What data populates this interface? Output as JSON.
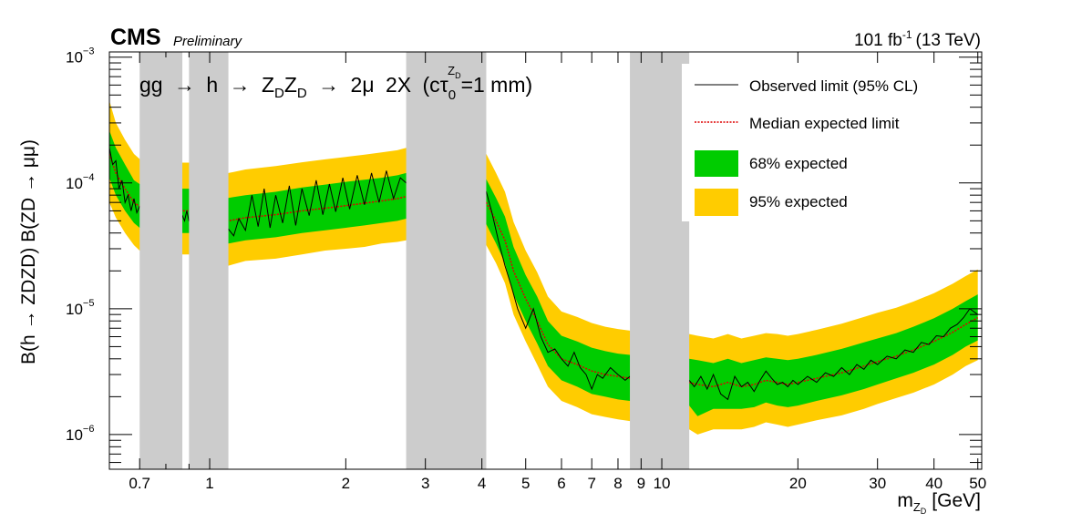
{
  "header": {
    "experiment": "CMS",
    "status": "Preliminary",
    "lumi": "101 fb",
    "lumi_exp": "-1",
    "energy": "(13 TeV)"
  },
  "process_label": {
    "parts": [
      "gg",
      "→",
      "h",
      "→",
      "Z",
      "D",
      "Z",
      "D",
      "→",
      "2μ",
      "2X",
      "(cτ",
      "0",
      "Z",
      "D",
      "=1 mm)"
    ]
  },
  "legend": {
    "observed": "Observed limit (95% CL)",
    "expected": "Median expected limit",
    "band68": "68% expected",
    "band95": "95% expected"
  },
  "axes": {
    "ylabel": "B(h → ZDZD) B(ZD → μμ)",
    "xlabel": "m",
    "xlabel_sub": "Z",
    "xlabel_subsub": "D",
    "xlabel_unit": "[GeV]"
  },
  "colors": {
    "band95": "#ffcc00",
    "band68": "#00cc00",
    "expected": "#dd0000",
    "observed": "#000000",
    "veto": "#cccccc"
  },
  "chart_data": {
    "type": "area",
    "x_scale": "log",
    "y_scale": "log",
    "xlim": [
      0.6,
      51
    ],
    "ylim": [
      5.3e-07,
      0.0011
    ],
    "x_ticks": [
      {
        "v": 0.7,
        "label": "0.7"
      },
      {
        "v": 1,
        "label": "1"
      },
      {
        "v": 2,
        "label": "2"
      },
      {
        "v": 3,
        "label": "3"
      },
      {
        "v": 4,
        "label": "4"
      },
      {
        "v": 5,
        "label": "5"
      },
      {
        "v": 6,
        "label": "6"
      },
      {
        "v": 7,
        "label": "7"
      },
      {
        "v": 8,
        "label": "8"
      },
      {
        "v": 9,
        "label": "9"
      },
      {
        "v": 10,
        "label": "10"
      },
      {
        "v": 20,
        "label": "20"
      },
      {
        "v": 30,
        "label": "30"
      },
      {
        "v": 40,
        "label": "40"
      },
      {
        "v": 50,
        "label": "50"
      }
    ],
    "y_ticks": [
      {
        "v": 1e-06,
        "base": "10",
        "exp": "−6"
      },
      {
        "v": 1e-05,
        "base": "10",
        "exp": "−5"
      },
      {
        "v": 0.0001,
        "base": "10",
        "exp": "−4"
      },
      {
        "v": 0.001,
        "base": "10",
        "exp": "−3"
      }
    ],
    "excluded_regions": [
      [
        0.7,
        0.87
      ],
      [
        0.9,
        1.1
      ],
      [
        2.72,
        4.09
      ],
      [
        8.5,
        11.5
      ]
    ],
    "expected": {
      "x": [
        0.6,
        0.62,
        0.65,
        0.68,
        0.7,
        0.87,
        0.9,
        1.1,
        1.2,
        1.4,
        1.6,
        1.8,
        2.0,
        2.2,
        2.4,
        2.6,
        2.72,
        4.09,
        4.3,
        4.5,
        4.7,
        5.0,
        5.3,
        5.6,
        6.0,
        6.5,
        7.0,
        7.5,
        8.0,
        8.5,
        11.5,
        12,
        13,
        14,
        15,
        16,
        17,
        18,
        19,
        20,
        22,
        25,
        28,
        30,
        33,
        36,
        40,
        44,
        47,
        50
      ],
      "median": [
        0.00017,
        0.00012,
        9e-05,
        7e-05,
        6.5e-05,
        6e-05,
        6e-05,
        5e-05,
        5.3e-05,
        5.6e-05,
        6e-05,
        6.3e-05,
        6.6e-05,
        6.9e-05,
        7.2e-05,
        7.5e-05,
        7.8e-05,
        7e-05,
        5e-05,
        3.5e-05,
        2e-05,
        1.2e-05,
        8e-06,
        5.2e-06,
        4e-06,
        3.6e-06,
        3.2e-06,
        3e-06,
        2.9e-06,
        2.8e-06,
        2.6e-06,
        2.5e-06,
        2.4e-06,
        2.6e-06,
        2.4e-06,
        2.5e-06,
        2.7e-06,
        2.6e-06,
        2.5e-06,
        2.6e-06,
        2.8e-06,
        3.1e-06,
        3.5e-06,
        3.8e-06,
        4.2e-06,
        4.7e-06,
        5.5e-06,
        6.5e-06,
        7.5e-06,
        8.5e-06
      ],
      "band68_lo": [
        0.00011,
        8e-05,
        6e-05,
        4.8e-05,
        4.4e-05,
        4e-05,
        4e-05,
        3.3e-05,
        3.5e-05,
        3.7e-05,
        4e-05,
        4.2e-05,
        4.4e-05,
        4.6e-05,
        4.8e-05,
        5e-05,
        5.2e-05,
        4.7e-05,
        3.3e-05,
        2.3e-05,
        1.3e-05,
        8e-06,
        5.3e-06,
        3.5e-06,
        2.7e-06,
        2.4e-06,
        2.1e-06,
        2e-06,
        1.9e-06,
        1.85e-06,
        1.7e-06,
        1.4e-06,
        1.6e-06,
        1.6e-06,
        1.6e-06,
        1.65e-06,
        1.8e-06,
        1.7e-06,
        1.65e-06,
        1.7e-06,
        1.85e-06,
        2.05e-06,
        2.3e-06,
        2.5e-06,
        2.8e-06,
        3.1e-06,
        3.6e-06,
        4.3e-06,
        5e-06,
        5.6e-06
      ],
      "band68_hi": [
        0.00026,
        0.00019,
        0.00014,
        0.000105,
        9.8e-05,
        9e-05,
        9e-05,
        7.6e-05,
        8e-05,
        8.5e-05,
        9.2e-05,
        9.7e-05,
        0.000102,
        0.000106,
        0.00011,
        0.000115,
        0.00012,
        0.000107,
        7.6e-05,
        5.4e-05,
        3.1e-05,
        1.85e-05,
        1.25e-05,
        8e-06,
        6.1e-06,
        5.5e-06,
        4.9e-06,
        4.6e-06,
        4.4e-06,
        4.3e-06,
        4e-06,
        3.9e-06,
        3.7e-06,
        4e-06,
        3.7e-06,
        3.9e-06,
        4.1e-06,
        4e-06,
        3.9e-06,
        4e-06,
        4.3e-06,
        4.8e-06,
        5.4e-06,
        5.8e-06,
        6.4e-06,
        7.2e-06,
        8.4e-06,
        1e-05,
        1.15e-05,
        1.3e-05
      ],
      "band95_lo": [
        7e-05,
        5.3e-05,
        4e-05,
        3.2e-05,
        2.9e-05,
        2.7e-05,
        2.7e-05,
        2.2e-05,
        2.4e-05,
        2.5e-05,
        2.7e-05,
        2.9e-05,
        3e-05,
        3.1e-05,
        3.3e-05,
        3.4e-05,
        3.5e-05,
        3.2e-05,
        2.3e-05,
        1.6e-05,
        9e-06,
        5.5e-06,
        3.6e-06,
        2.4e-06,
        1.85e-06,
        1.65e-06,
        1.45e-06,
        1.38e-06,
        1.32e-06,
        1.28e-06,
        1.1e-06,
        1e-06,
        1.1e-06,
        1.1e-06,
        1.1e-06,
        1.15e-06,
        1.25e-06,
        1.2e-06,
        1.15e-06,
        1.2e-06,
        1.3e-06,
        1.42e-06,
        1.6e-06,
        1.75e-06,
        1.95e-06,
        2.15e-06,
        2.5e-06,
        3e-06,
        3.5e-06,
        3.9e-06
      ],
      "band95_hi": [
        0.00045,
        0.0003,
        0.00022,
        0.00017,
        0.000155,
        0.000145,
        0.000145,
        0.00012,
        0.000128,
        0.000136,
        0.000146,
        0.000154,
        0.000161,
        0.000168,
        0.000175,
        0.000182,
        0.00019,
        0.00017,
        0.00012,
        8.5e-05,
        4.9e-05,
        2.9e-05,
        1.95e-05,
        1.25e-05,
        9.5e-06,
        8.6e-06,
        7.7e-06,
        7.2e-06,
        6.9e-06,
        6.7e-06,
        6.3e-06,
        6.1e-06,
        5.8e-06,
        6.3e-06,
        5.8e-06,
        6.1e-06,
        6.4e-06,
        6.3e-06,
        6.1e-06,
        6.3e-06,
        6.8e-06,
        7.6e-06,
        8.6e-06,
        9.3e-06,
        1.02e-05,
        1.14e-05,
        1.33e-05,
        1.58e-05,
        1.82e-05,
        2.05e-05
      ]
    },
    "observed": {
      "x": [
        0.6,
        0.61,
        0.62,
        0.63,
        0.64,
        0.65,
        0.66,
        0.67,
        0.68,
        0.69,
        0.7,
        0.87,
        0.88,
        0.89,
        0.9,
        1.1,
        1.13,
        1.16,
        1.2,
        1.24,
        1.28,
        1.32,
        1.36,
        1.4,
        1.45,
        1.5,
        1.55,
        1.6,
        1.66,
        1.72,
        1.78,
        1.84,
        1.9,
        1.97,
        2.04,
        2.12,
        2.2,
        2.28,
        2.37,
        2.46,
        2.55,
        2.64,
        2.72,
        4.09,
        4.2,
        4.35,
        4.5,
        4.65,
        4.8,
        5.0,
        5.2,
        5.4,
        5.6,
        5.8,
        6.0,
        6.2,
        6.4,
        6.6,
        6.8,
        7.0,
        7.2,
        7.4,
        7.7,
        8.0,
        8.3,
        8.5,
        11.5,
        11.8,
        12.2,
        12.6,
        13.0,
        13.5,
        14.0,
        14.5,
        15.0,
        15.5,
        16.0,
        16.5,
        17.0,
        17.5,
        18.0,
        18.5,
        19.0,
        19.5,
        20.0,
        21.0,
        22.0,
        23.0,
        24.0,
        25.0,
        26.0,
        27.0,
        28.0,
        29.0,
        30.0,
        31.5,
        33.0,
        34.5,
        36.0,
        37.5,
        39.0,
        40.5,
        42.0,
        43.5,
        45.0,
        46.5,
        48.0,
        50.0
      ],
      "limit": [
        0.00019,
        0.00014,
        0.00015,
        9e-05,
        0.000105,
        7e-05,
        8e-05,
        6e-05,
        7.5e-05,
        5.8e-05,
        6.5e-05,
        5.5e-05,
        5e-05,
        6e-05,
        5e-05,
        4.3e-05,
        3.8e-05,
        5.2e-05,
        4.2e-05,
        8e-05,
        4.5e-05,
        9e-05,
        4.4e-05,
        8e-05,
        4.8e-05,
        9.5e-05,
        4.6e-05,
        9e-05,
        5.5e-05,
        0.000105,
        5.6e-05,
        9.8e-05,
        5.9e-05,
        0.00011,
        6.2e-05,
        0.000115,
        6.7e-05,
        0.00012,
        7e-05,
        0.000125,
        7.5e-05,
        0.00011,
        0.0001,
        8.5e-05,
        6e-05,
        3.5e-05,
        2.2e-05,
        1.5e-05,
        1e-05,
        7e-06,
        1e-05,
        6e-06,
        4.5e-06,
        4.8e-06,
        4e-06,
        3.5e-06,
        4.5e-06,
        3.4e-06,
        3e-06,
        2.3e-06,
        3e-06,
        2.8e-06,
        3.4e-06,
        3e-06,
        2.7e-06,
        2.9e-06,
        2.7e-06,
        2.4e-06,
        2.9e-06,
        2.3e-06,
        3e-06,
        2.1e-06,
        1.9e-06,
        2.9e-06,
        2.4e-06,
        2.6e-06,
        2.2e-06,
        2.7e-06,
        3.2e-06,
        2.8e-06,
        2.5e-06,
        2.6e-06,
        2.4e-06,
        2.7e-06,
        2.5e-06,
        2.9e-06,
        2.6e-06,
        3.1e-06,
        2.9e-06,
        3.4e-06,
        3e-06,
        3.6e-06,
        3.3e-06,
        3.9e-06,
        3.6e-06,
        4.2e-06,
        4e-06,
        4.7e-06,
        4.5e-06,
        5.4e-06,
        5.2e-06,
        6.1e-06,
        6e-06,
        7e-06,
        7.5e-06,
        8.5e-06,
        1e-05,
        9e-06
      ]
    }
  }
}
